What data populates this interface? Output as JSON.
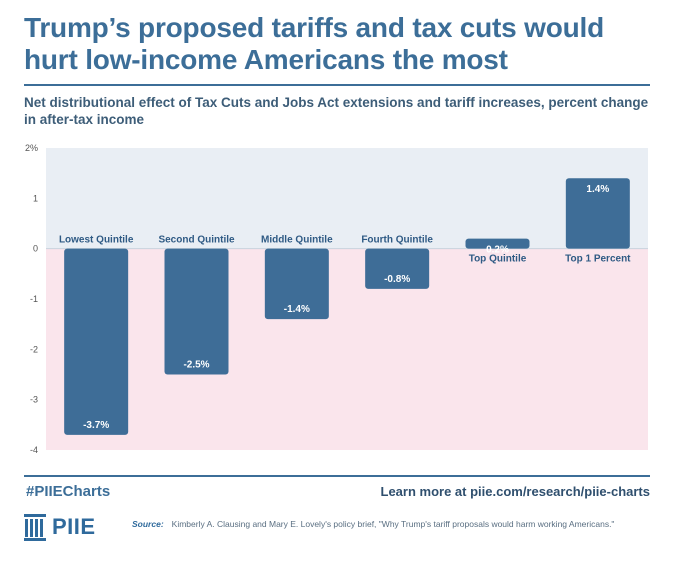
{
  "header": {
    "title": "Trump’s proposed tariffs and tax cuts would hurt low-income Americans the most",
    "subtitle": "Net distributional effect of Tax Cuts and Jobs Act extensions and tariff increases, percent change in after-tax income"
  },
  "chart_data": {
    "type": "bar",
    "categories": [
      "Lowest Quintile",
      "Second Quintile",
      "Middle Quintile",
      "Fourth Quintile",
      "Top Quintile",
      "Top 1 Percent"
    ],
    "values": [
      -3.7,
      -2.5,
      -1.4,
      -0.8,
      0.2,
      1.4
    ],
    "value_labels": [
      "-3.7%",
      "-2.5%",
      "-1.4%",
      "-0.8%",
      "0.2%",
      "1.4%"
    ],
    "ylim": [
      -4,
      2
    ],
    "yticks": [
      2,
      1,
      0,
      -1,
      -2,
      -3,
      -4
    ],
    "ytick_labels": [
      "2%",
      "1",
      "0",
      "-1",
      "-2",
      "-3",
      "-4"
    ],
    "colors": {
      "bar": "#3e6d97",
      "positive_bg": "#e9eef4",
      "negative_bg": "#fae5ec",
      "category_label": "#2f5a84",
      "tick": "#555555"
    }
  },
  "footer": {
    "hashtag": "#PIIECharts",
    "learn_more": "Learn more at piie.com/research/piie-charts",
    "logo_text": "PIIE",
    "source_label": "Source:",
    "source_text": "Kimberly A. Clausing and Mary E. Lovely's policy brief, \"Why Trump's tariff proposals would harm working Americans.\""
  }
}
